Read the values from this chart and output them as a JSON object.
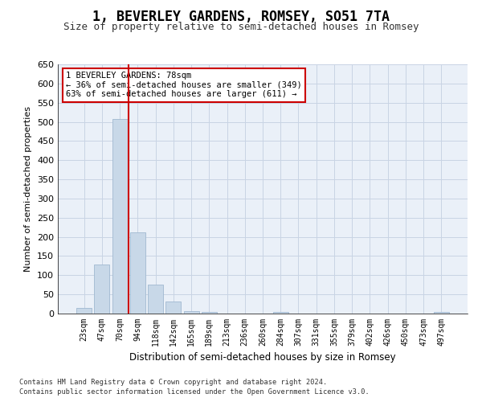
{
  "title": "1, BEVERLEY GARDENS, ROMSEY, SO51 7TA",
  "subtitle": "Size of property relative to semi-detached houses in Romsey",
  "xlabel": "Distribution of semi-detached houses by size in Romsey",
  "ylabel": "Number of semi-detached properties",
  "categories": [
    "23sqm",
    "47sqm",
    "70sqm",
    "94sqm",
    "118sqm",
    "142sqm",
    "165sqm",
    "189sqm",
    "213sqm",
    "236sqm",
    "260sqm",
    "284sqm",
    "307sqm",
    "331sqm",
    "355sqm",
    "379sqm",
    "402sqm",
    "426sqm",
    "450sqm",
    "473sqm",
    "497sqm"
  ],
  "values": [
    15,
    127,
    507,
    212,
    76,
    31,
    7,
    5,
    0,
    0,
    0,
    5,
    0,
    0,
    0,
    0,
    0,
    0,
    0,
    0,
    5
  ],
  "bar_color": "#c8d8e8",
  "bar_edge_color": "#a0b8d0",
  "property_bin_index": 2,
  "annotation_text_line1": "1 BEVERLEY GARDENS: 78sqm",
  "annotation_text_line2": "← 36% of semi-detached houses are smaller (349)",
  "annotation_text_line3": "63% of semi-detached houses are larger (611) →",
  "ylim": [
    0,
    650
  ],
  "yticks": [
    0,
    50,
    100,
    150,
    200,
    250,
    300,
    350,
    400,
    450,
    500,
    550,
    600,
    650
  ],
  "footer_line1": "Contains HM Land Registry data © Crown copyright and database right 2024.",
  "footer_line2": "Contains public sector information licensed under the Open Government Licence v3.0.",
  "bg_color": "#ffffff",
  "plot_bg_color": "#eaf0f8",
  "grid_color": "#c8d4e4",
  "title_fontsize": 12,
  "subtitle_fontsize": 9,
  "annotation_box_color": "#ffffff",
  "annotation_box_edge_color": "#cc0000",
  "red_line_color": "#cc0000"
}
